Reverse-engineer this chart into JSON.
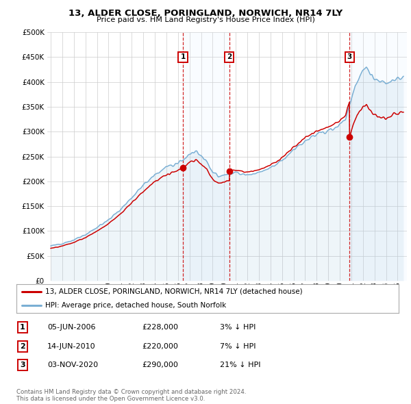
{
  "title": "13, ALDER CLOSE, PORINGLAND, NORWICH, NR14 7LY",
  "subtitle": "Price paid vs. HM Land Registry's House Price Index (HPI)",
  "ylim": [
    0,
    500000
  ],
  "yticks": [
    0,
    50000,
    100000,
    150000,
    200000,
    250000,
    300000,
    350000,
    400000,
    450000,
    500000
  ],
  "ytick_labels": [
    "£0",
    "£50K",
    "£100K",
    "£150K",
    "£200K",
    "£250K",
    "£300K",
    "£350K",
    "£400K",
    "£450K",
    "£500K"
  ],
  "hpi_color": "#7aafd4",
  "sale_color": "#cc0000",
  "vline_color": "#cc0000",
  "sale_points": [
    {
      "date_num": 2006.43,
      "price": 228000,
      "label": "1"
    },
    {
      "date_num": 2010.45,
      "price": 220000,
      "label": "2"
    },
    {
      "date_num": 2020.84,
      "price": 290000,
      "label": "3"
    }
  ],
  "legend_entries": [
    {
      "label": "13, ALDER CLOSE, PORINGLAND, NORWICH, NR14 7LY (detached house)",
      "color": "#cc0000"
    },
    {
      "label": "HPI: Average price, detached house, South Norfolk",
      "color": "#7aafd4"
    }
  ],
  "table_rows": [
    {
      "num": "1",
      "date": "05-JUN-2006",
      "price": "£228,000",
      "hpi": "3% ↓ HPI"
    },
    {
      "num": "2",
      "date": "14-JUN-2010",
      "price": "£220,000",
      "hpi": "7% ↓ HPI"
    },
    {
      "num": "3",
      "date": "03-NOV-2020",
      "price": "£290,000",
      "hpi": "21% ↓ HPI"
    }
  ],
  "footnote": "Contains HM Land Registry data © Crown copyright and database right 2024.\nThis data is licensed under the Open Government Licence v3.0.",
  "background_color": "#ffffff",
  "grid_color": "#cccccc",
  "shade_color": "#ddeeff",
  "xmin": 1994.7,
  "xmax": 2025.8,
  "xlim_start": 1995,
  "xlim_end": 2025
}
